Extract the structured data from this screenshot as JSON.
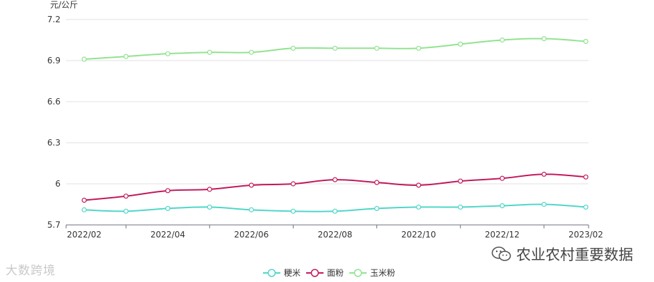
{
  "chart_data": {
    "type": "line",
    "ylabel": "元/公斤",
    "ylim": [
      5.7,
      7.2
    ],
    "y_ticks": [
      5.7,
      6,
      6.3,
      6.6,
      6.9,
      7.2
    ],
    "y_tick_labels": [
      "5.7",
      "6",
      "6.3",
      "6.6",
      "6.9",
      "7.2"
    ],
    "x": [
      "2022/02",
      "2022/03",
      "2022/04",
      "2022/05",
      "2022/06",
      "2022/07",
      "2022/08",
      "2022/09",
      "2022/10",
      "2022/11",
      "2022/12",
      "2023/01",
      "2023/02"
    ],
    "x_tick_labels": [
      "2022/02",
      "2022/04",
      "2022/06",
      "2022/08",
      "2022/10",
      "2022/12",
      "2023/02"
    ],
    "grid": true,
    "smooth": true,
    "legend_position": "bottom-center",
    "series": [
      {
        "name": "粳米",
        "color": "#4fd6c9",
        "values": [
          5.81,
          5.8,
          5.82,
          5.83,
          5.81,
          5.8,
          5.8,
          5.82,
          5.83,
          5.83,
          5.84,
          5.85,
          5.83
        ]
      },
      {
        "name": "面粉",
        "color": "#c2185b",
        "values": [
          5.88,
          5.91,
          5.95,
          5.96,
          5.99,
          6.0,
          6.03,
          6.01,
          5.99,
          6.02,
          6.04,
          6.07,
          6.05
        ]
      },
      {
        "name": "玉米粉",
        "color": "#90e38f",
        "values": [
          6.91,
          6.93,
          6.95,
          6.96,
          6.96,
          6.99,
          6.99,
          6.99,
          6.99,
          7.02,
          7.05,
          7.06,
          7.04
        ]
      }
    ]
  },
  "watermarks": {
    "left": "大数跨境",
    "right": "农业农村重要数据",
    "right_icon": "wechat-icon"
  }
}
